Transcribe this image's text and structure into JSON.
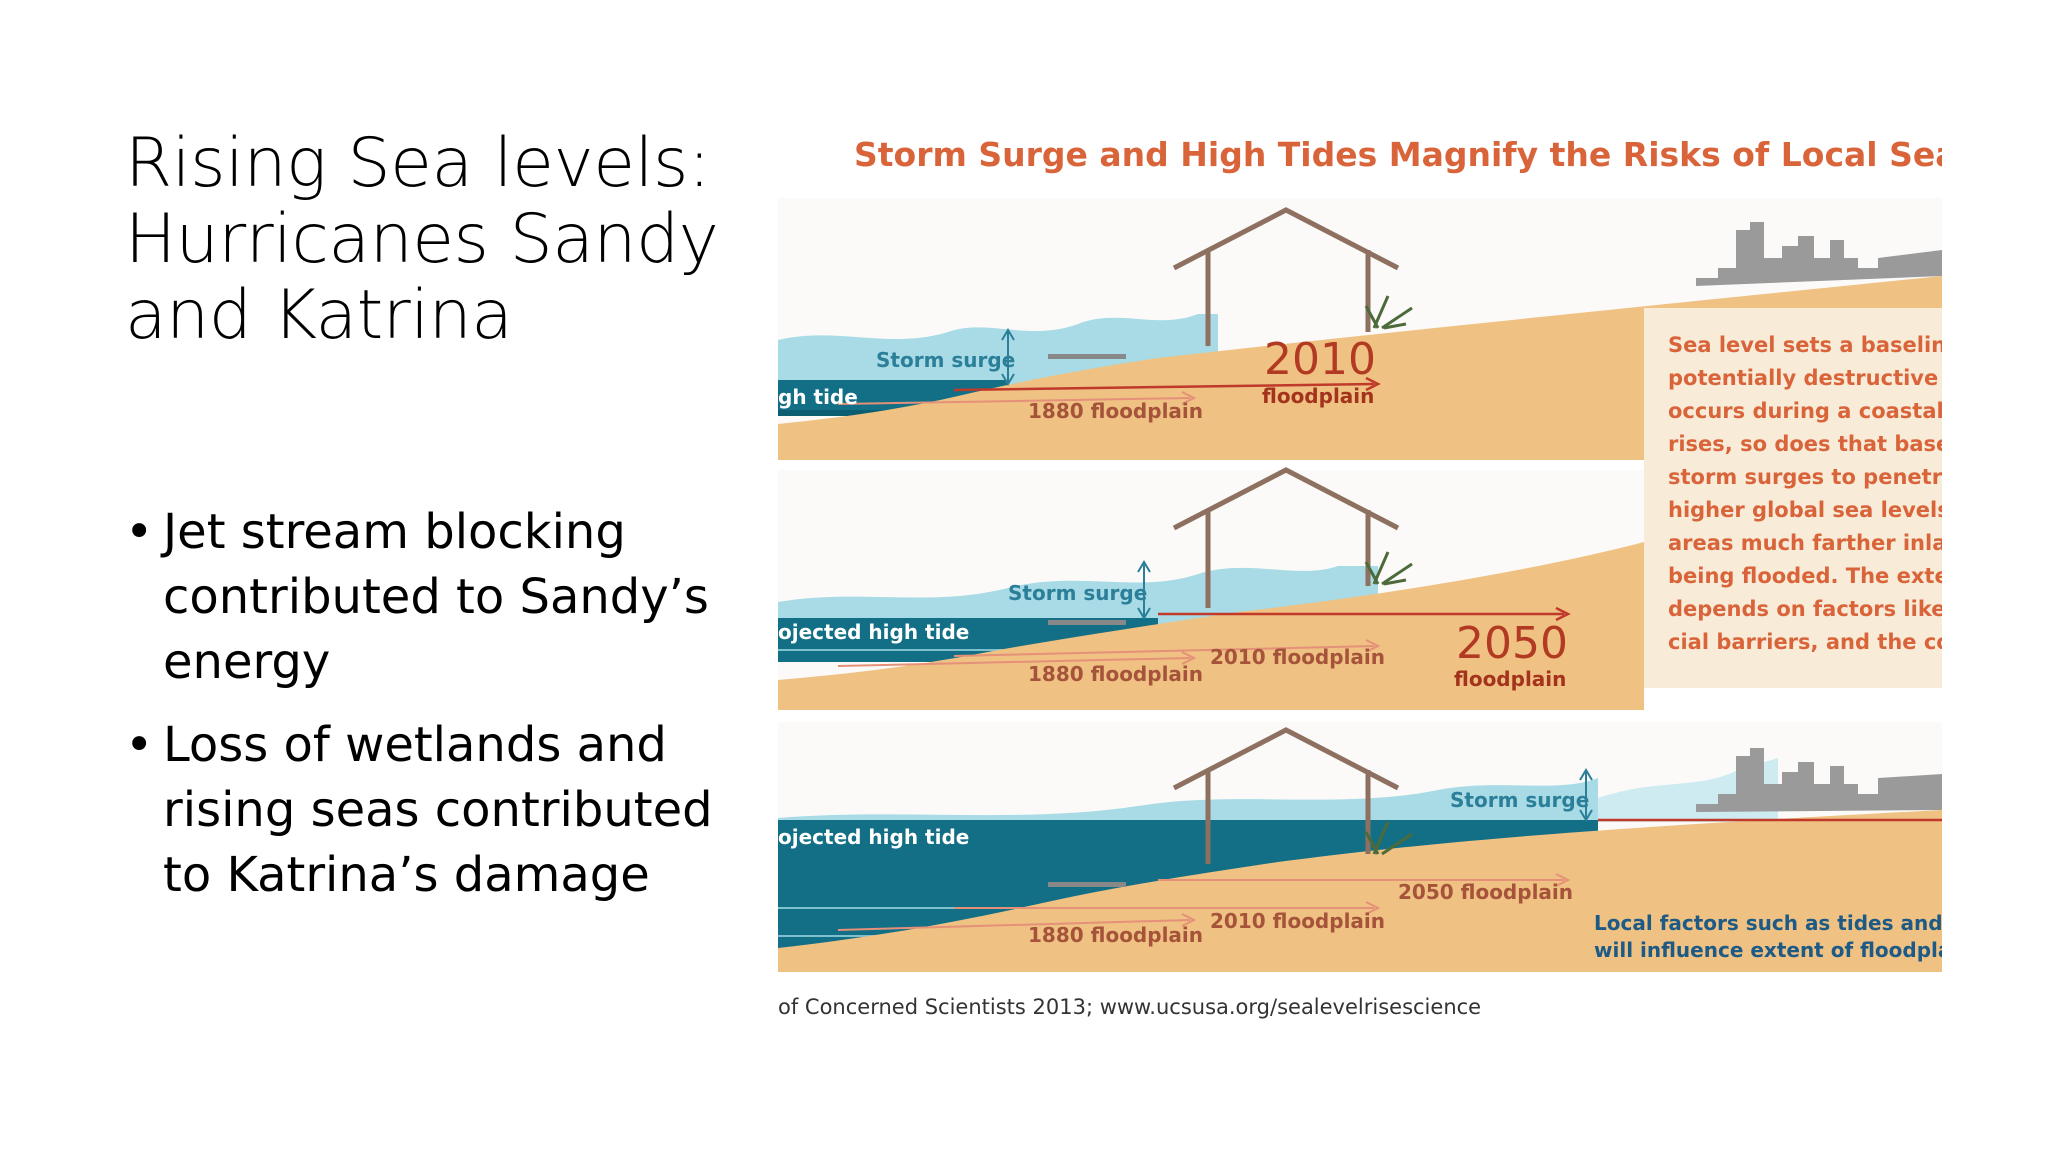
{
  "slide": {
    "title": "Rising Sea levels: Hurricanes Sandy and Katrina",
    "bullet_char": "•",
    "bullets": [
      "Jet stream blocking contributed to Sandy’s energy",
      "Loss of wetlands and rising seas contributed to Katrina’s damage"
    ]
  },
  "figure": {
    "title": "Storm Surge and High Tides Magnify the Risks of Local Sea Level R",
    "panel1": {
      "storm_surge": "Storm surge",
      "high_tide": "gh tide",
      "floodplain_1880": "1880 floodplain",
      "year": "2010",
      "floodplain_word": "floodplain"
    },
    "panel2": {
      "storm_surge": "Storm surge",
      "projected_high_tide": "ojected high tide",
      "floodplain_1880": "1880 floodplain",
      "floodplain_2010": "2010 floodplain",
      "year": "2050",
      "floodplain_word": "floodplain"
    },
    "panel3": {
      "storm_surge": "Storm surge",
      "projected_high_tide": "ojected high tide",
      "floodplain_1880": "1880 floodplain",
      "floodplain_2010": "2010 floodplain",
      "floodplain_2050": "2050 floodplain",
      "local_line1": "Local factors such as tides and coa",
      "local_line2": "will influence extent of floodplain."
    },
    "info_box": [
      "Sea level sets a baseline f",
      "potentially destructive ri",
      "occurs during a coastal s",
      "rises, so does that baselin",
      "storm surges to penetrat",
      "higher global sea levels",
      "areas much farther inlan",
      "being flooded. The exten",
      "depends on factors like t",
      "cial barriers, and the con"
    ],
    "credit": "of Concerned Scientists 2013; www.ucsusa.org/sealevelrisescience"
  }
}
